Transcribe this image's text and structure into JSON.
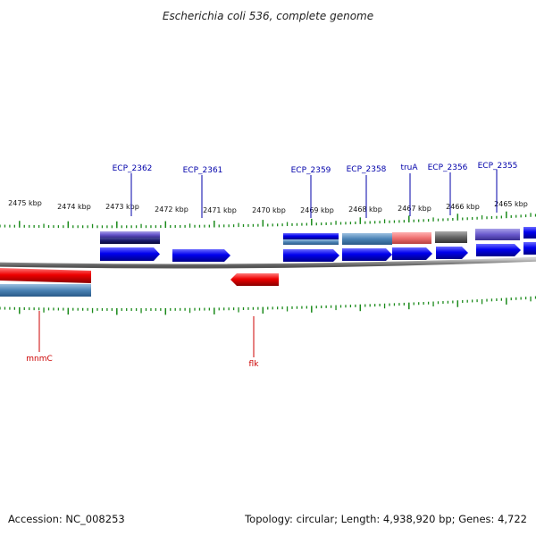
{
  "title": "Escherichia coli 536, complete genome",
  "footer": {
    "accession": "Accession: NC_008253",
    "topology": "Topology: circular; Length: 4,938,920 bp; Genes: 4,722"
  },
  "colors": {
    "forward_gene": "#0000ee",
    "reverse_gene": "#ee0000",
    "forward_label": "#0000aa",
    "reverse_label": "#cc0000",
    "tick": "#1a8a1a",
    "backbone": "#888888"
  },
  "ticks": [
    "2475 kbp",
    "2474 kbp",
    "2473 kbp",
    "2472 kbp",
    "2471 kbp",
    "2470 kbp",
    "2469 kbp",
    "2468 kbp",
    "2467 kbp",
    "2466 kbp",
    "2465 kbp"
  ],
  "forward_labels": [
    "ECP_2362",
    "ECP_2361",
    "ECP_2359",
    "ECP_2358",
    "truA",
    "ECP_2356",
    "ECP_2355"
  ],
  "reverse_labels": [
    "mnmC",
    "flk"
  ]
}
